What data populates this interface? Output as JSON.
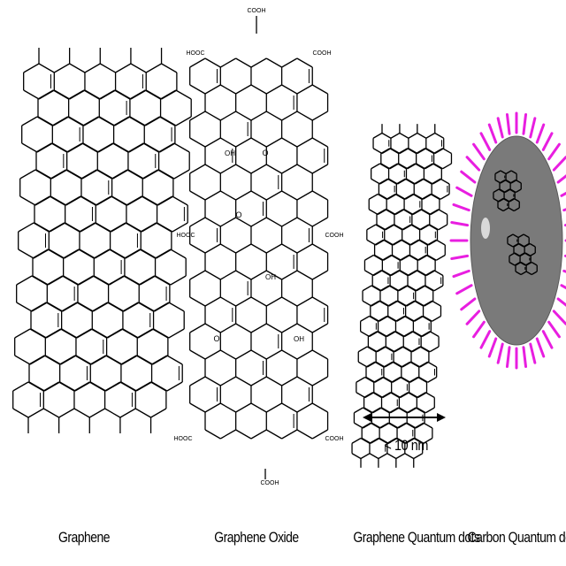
{
  "labels": {
    "graphene": "Graphene",
    "graphene_oxide": "Graphene Oxide",
    "gqd": "Graphene Quantum dots",
    "cqd": "Carbon Quantum dots"
  },
  "scale_text": "< 10 nm",
  "groups": {
    "cooh": "COOH",
    "hooc": "HOOC",
    "oh": "OH",
    "o": "O"
  },
  "colors": {
    "line": "#000000",
    "halo": "#e81ee0",
    "dot_fill": "#7a7a7a",
    "dot_highlight": "#d9d9d9"
  }
}
